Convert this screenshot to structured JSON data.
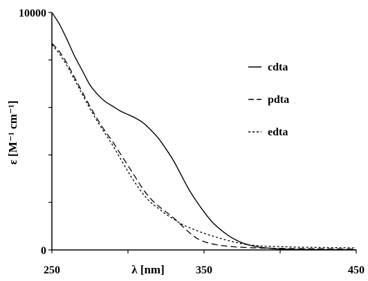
{
  "chart_data": {
    "type": "line",
    "title": "",
    "xlabel": "λ [nm]",
    "ylabel": "ε [M⁻¹ cm⁻¹]",
    "xlim": [
      250,
      450
    ],
    "ylim": [
      0,
      10000
    ],
    "x_ticks": [
      {
        "value": 250,
        "label": "250"
      },
      {
        "value": 350,
        "label": "350"
      },
      {
        "value": 450,
        "label": "450"
      }
    ],
    "y_ticks": [
      {
        "value": 0,
        "label": "0"
      },
      {
        "value": 10000,
        "label": "10000"
      }
    ],
    "grid": false,
    "legend_position": "top-right",
    "series": [
      {
        "name": "cdta",
        "style": "solid",
        "color": "#000000",
        "points": [
          [
            250,
            10000
          ],
          [
            255,
            9500
          ],
          [
            260,
            8850
          ],
          [
            265,
            8150
          ],
          [
            270,
            7550
          ],
          [
            275,
            6950
          ],
          [
            280,
            6550
          ],
          [
            285,
            6250
          ],
          [
            290,
            6050
          ],
          [
            295,
            5850
          ],
          [
            300,
            5700
          ],
          [
            305,
            5550
          ],
          [
            310,
            5350
          ],
          [
            315,
            5050
          ],
          [
            320,
            4700
          ],
          [
            325,
            4250
          ],
          [
            330,
            3750
          ],
          [
            335,
            3150
          ],
          [
            340,
            2550
          ],
          [
            345,
            2050
          ],
          [
            350,
            1600
          ],
          [
            355,
            1200
          ],
          [
            360,
            900
          ],
          [
            365,
            650
          ],
          [
            370,
            450
          ],
          [
            375,
            300
          ],
          [
            380,
            200
          ],
          [
            385,
            130
          ],
          [
            390,
            90
          ],
          [
            395,
            60
          ],
          [
            400,
            40
          ],
          [
            410,
            25
          ],
          [
            420,
            20
          ],
          [
            430,
            15
          ],
          [
            440,
            12
          ],
          [
            450,
            10
          ]
        ]
      },
      {
        "name": "pdta",
        "style": "dashed",
        "color": "#000000",
        "points": [
          [
            250,
            8700
          ],
          [
            255,
            8350
          ],
          [
            260,
            7850
          ],
          [
            265,
            7250
          ],
          [
            270,
            6650
          ],
          [
            275,
            6050
          ],
          [
            280,
            5500
          ],
          [
            285,
            5000
          ],
          [
            290,
            4550
          ],
          [
            295,
            4050
          ],
          [
            300,
            3550
          ],
          [
            305,
            3050
          ],
          [
            310,
            2550
          ],
          [
            315,
            2150
          ],
          [
            320,
            1850
          ],
          [
            325,
            1600
          ],
          [
            330,
            1350
          ],
          [
            335,
            1050
          ],
          [
            340,
            750
          ],
          [
            345,
            500
          ],
          [
            350,
            350
          ],
          [
            355,
            260
          ],
          [
            360,
            200
          ],
          [
            365,
            160
          ],
          [
            370,
            130
          ],
          [
            375,
            110
          ],
          [
            380,
            95
          ],
          [
            385,
            85
          ],
          [
            390,
            75
          ],
          [
            400,
            65
          ],
          [
            410,
            55
          ],
          [
            420,
            50
          ],
          [
            430,
            45
          ],
          [
            440,
            40
          ],
          [
            450,
            35
          ]
        ]
      },
      {
        "name": "edta",
        "style": "dotted",
        "color": "#000000",
        "points": [
          [
            250,
            8650
          ],
          [
            255,
            8250
          ],
          [
            260,
            7750
          ],
          [
            265,
            7150
          ],
          [
            270,
            6550
          ],
          [
            275,
            5950
          ],
          [
            280,
            5400
          ],
          [
            285,
            4900
          ],
          [
            290,
            4400
          ],
          [
            295,
            3850
          ],
          [
            300,
            3300
          ],
          [
            305,
            2800
          ],
          [
            310,
            2350
          ],
          [
            315,
            2000
          ],
          [
            320,
            1750
          ],
          [
            325,
            1500
          ],
          [
            330,
            1300
          ],
          [
            335,
            1100
          ],
          [
            340,
            950
          ],
          [
            345,
            820
          ],
          [
            350,
            700
          ],
          [
            355,
            600
          ],
          [
            360,
            500
          ],
          [
            365,
            410
          ],
          [
            370,
            330
          ],
          [
            375,
            260
          ],
          [
            380,
            210
          ],
          [
            385,
            180
          ],
          [
            390,
            160
          ],
          [
            400,
            140
          ],
          [
            410,
            120
          ],
          [
            420,
            110
          ],
          [
            430,
            100
          ],
          [
            440,
            95
          ],
          [
            450,
            90
          ]
        ]
      }
    ]
  }
}
